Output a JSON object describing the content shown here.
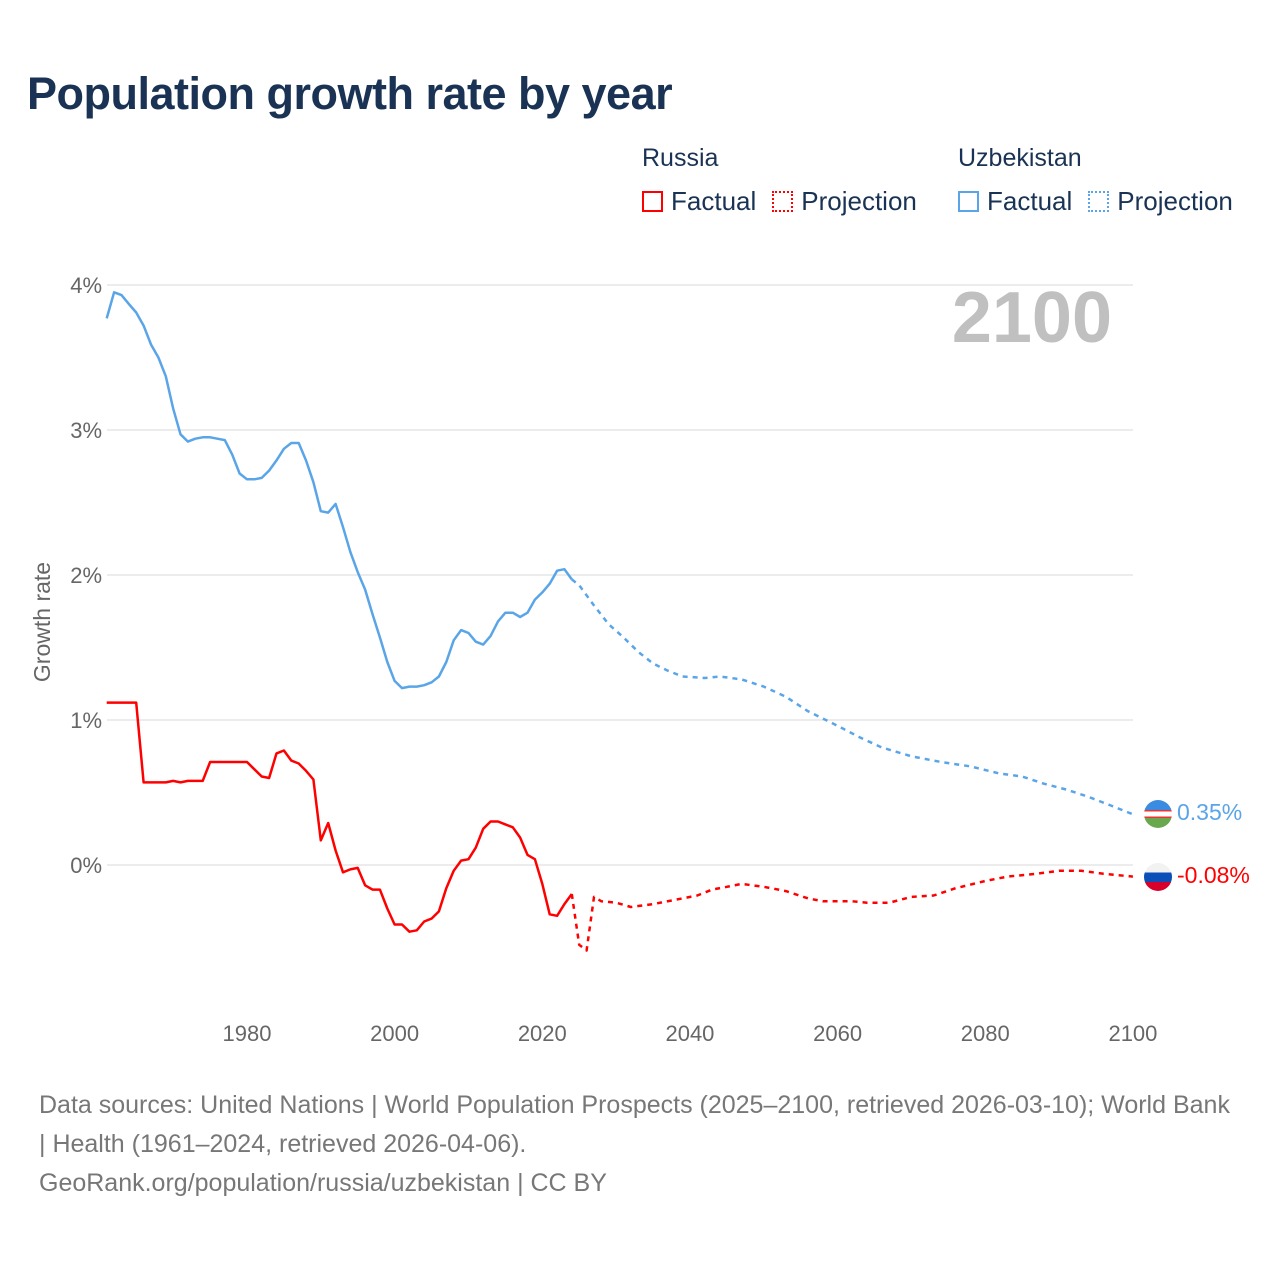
{
  "title": "Population growth rate by year",
  "legend": {
    "groups": [
      {
        "name": "Russia",
        "factual": "Factual",
        "projection": "Projection",
        "color": "#ff0000"
      },
      {
        "name": "Uzbekistan",
        "factual": "Factual",
        "projection": "Projection",
        "color": "#5aa5e8"
      }
    ]
  },
  "year_label": "2100",
  "end_labels": {
    "uzbekistan": "0.35%",
    "russia": "-0.08%"
  },
  "footer": {
    "line1": "Data sources: United Nations | World Population Prospects (2025–2100, retrieved 2026-03-10); World Bank | Health (1961–2024, retrieved 2026-04-06).",
    "line2": "GeoRank.org/population/russia/uzbekistan | CC BY"
  },
  "chart_data": {
    "type": "line",
    "title": "Population growth rate by year",
    "xlabel": "",
    "ylabel": "Growth rate",
    "xlim": [
      1961,
      2100
    ],
    "ylim": [
      -0.9,
      4.0
    ],
    "x_ticks": [
      "1980",
      "2000",
      "2020",
      "2040",
      "2060",
      "2080",
      "2100"
    ],
    "y_ticks": [
      "0%",
      "1%",
      "2%",
      "3%",
      "4%"
    ],
    "grid": true,
    "series": [
      {
        "name": "Uzbekistan Factual",
        "color": "#5aa5e8",
        "dashed": false,
        "x": [
          1961,
          1962,
          1963,
          1964,
          1965,
          1966,
          1967,
          1968,
          1969,
          1970,
          1971,
          1972,
          1973,
          1974,
          1975,
          1976,
          1977,
          1978,
          1979,
          1980,
          1981,
          1982,
          1983,
          1984,
          1985,
          1986,
          1987,
          1988,
          1989,
          1990,
          1991,
          1992,
          1993,
          1994,
          1995,
          1996,
          1997,
          1998,
          1999,
          2000,
          2001,
          2002,
          2003,
          2004,
          2005,
          2006,
          2007,
          2008,
          2009,
          2010,
          2011,
          2012,
          2013,
          2014,
          2015,
          2016,
          2017,
          2018,
          2019,
          2020,
          2021,
          2022,
          2023,
          2024
        ],
        "y": [
          3.77,
          3.95,
          3.93,
          3.87,
          3.81,
          3.72,
          3.59,
          3.5,
          3.37,
          3.15,
          2.97,
          2.92,
          2.94,
          2.95,
          2.95,
          2.94,
          2.93,
          2.83,
          2.7,
          2.66,
          2.66,
          2.67,
          2.72,
          2.79,
          2.87,
          2.91,
          2.91,
          2.79,
          2.64,
          2.44,
          2.43,
          2.49,
          2.33,
          2.16,
          2.02,
          1.9,
          1.73,
          1.57,
          1.4,
          1.27,
          1.22,
          1.23,
          1.23,
          1.24,
          1.26,
          1.3,
          1.4,
          1.55,
          1.62,
          1.6,
          1.54,
          1.52,
          1.58,
          1.68,
          1.74,
          1.74,
          1.71,
          1.74,
          1.83,
          1.88,
          1.94,
          2.03,
          2.04,
          1.97
        ]
      },
      {
        "name": "Uzbekistan Projection",
        "color": "#5aa5e8",
        "dashed": true,
        "x": [
          2024,
          2025,
          2027,
          2029,
          2031,
          2033,
          2035,
          2037,
          2039,
          2042,
          2044,
          2047,
          2050,
          2053,
          2056,
          2060,
          2063,
          2066,
          2070,
          2074,
          2078,
          2082,
          2085,
          2088,
          2091,
          2094,
          2097,
          2100
        ],
        "y": [
          1.97,
          1.93,
          1.79,
          1.66,
          1.57,
          1.47,
          1.39,
          1.34,
          1.3,
          1.29,
          1.3,
          1.28,
          1.23,
          1.16,
          1.06,
          0.96,
          0.88,
          0.81,
          0.75,
          0.71,
          0.68,
          0.63,
          0.61,
          0.56,
          0.52,
          0.47,
          0.41,
          0.35
        ]
      },
      {
        "name": "Russia Factual",
        "color": "#ff0000",
        "dashed": false,
        "x": [
          1961,
          1962,
          1963,
          1964,
          1965,
          1966,
          1967,
          1968,
          1969,
          1970,
          1971,
          1972,
          1973,
          1974,
          1975,
          1976,
          1977,
          1978,
          1979,
          1980,
          1981,
          1982,
          1983,
          1984,
          1985,
          1986,
          1987,
          1988,
          1989,
          1990,
          1991,
          1992,
          1993,
          1994,
          1995,
          1996,
          1997,
          1998,
          1999,
          2000,
          2001,
          2002,
          2003,
          2004,
          2005,
          2006,
          2007,
          2008,
          2009,
          2010,
          2011,
          2012,
          2013,
          2014,
          2015,
          2016,
          2017,
          2018,
          2019,
          2020,
          2021,
          2022,
          2023,
          2024
        ],
        "y": [
          1.12,
          1.12,
          1.12,
          1.12,
          1.12,
          0.57,
          0.57,
          0.57,
          0.57,
          0.58,
          0.57,
          0.58,
          0.58,
          0.58,
          0.71,
          0.71,
          0.71,
          0.71,
          0.71,
          0.71,
          0.66,
          0.61,
          0.6,
          0.77,
          0.79,
          0.72,
          0.7,
          0.65,
          0.59,
          0.17,
          0.29,
          0.1,
          -0.05,
          -0.03,
          -0.02,
          -0.14,
          -0.17,
          -0.17,
          -0.3,
          -0.41,
          -0.41,
          -0.46,
          -0.45,
          -0.39,
          -0.37,
          -0.32,
          -0.16,
          -0.04,
          0.03,
          0.04,
          0.12,
          0.25,
          0.3,
          0.3,
          0.28,
          0.26,
          0.19,
          0.07,
          0.04,
          -0.13,
          -0.34,
          -0.35,
          -0.27,
          -0.2
        ]
      },
      {
        "name": "Russia Projection",
        "color": "#ff0000",
        "dashed": true,
        "x": [
          2024,
          2025,
          2026,
          2027,
          2028,
          2030,
          2032,
          2035,
          2038,
          2041,
          2043,
          2045,
          2047,
          2050,
          2053,
          2056,
          2058,
          2062,
          2064,
          2067,
          2070,
          2073,
          2076,
          2080,
          2083,
          2087,
          2090,
          2093,
          2096,
          2100
        ],
        "y": [
          -0.2,
          -0.55,
          -0.59,
          -0.22,
          -0.25,
          -0.26,
          -0.29,
          -0.27,
          -0.24,
          -0.21,
          -0.17,
          -0.15,
          -0.13,
          -0.15,
          -0.18,
          -0.23,
          -0.25,
          -0.25,
          -0.26,
          -0.26,
          -0.22,
          -0.21,
          -0.16,
          -0.11,
          -0.08,
          -0.06,
          -0.04,
          -0.04,
          -0.06,
          -0.08
        ]
      }
    ]
  }
}
